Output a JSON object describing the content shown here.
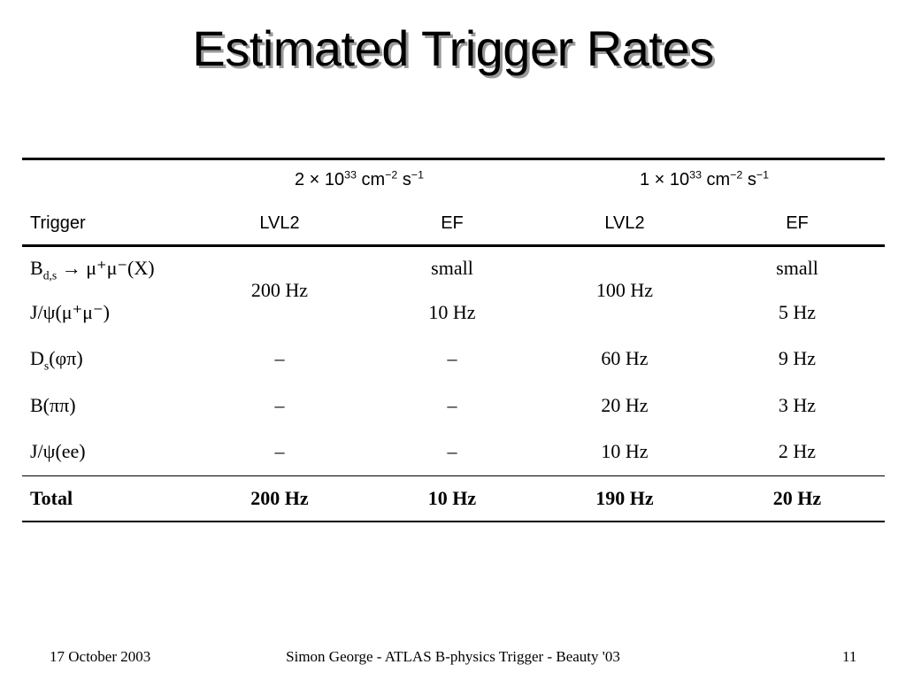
{
  "slide": {
    "title": "Estimated Trigger Rates",
    "footer": {
      "date": "17 October 2003",
      "center": "Simon George - ATLAS B-physics Trigger - Beauty '03",
      "page": "11"
    }
  },
  "table": {
    "luminosity_headers": [
      {
        "prefix": "2 × 10",
        "exp1": "33",
        "mid": " cm",
        "exp2": "−2",
        "mid2": " s",
        "exp3": "−1"
      },
      {
        "prefix": "1 × 10",
        "exp1": "33",
        "mid": " cm",
        "exp2": "−2",
        "mid2": " s",
        "exp3": "−1"
      }
    ],
    "column_headers": [
      "Trigger",
      "LVL2",
      "EF",
      "LVL2",
      "EF"
    ],
    "rows": [
      {
        "trigger": {
          "base": "B",
          "sub": "d,s",
          "rest": " → μ⁺μ⁻(X)"
        },
        "lvl2_a": "",
        "ef_a": "small",
        "lvl2_b": "",
        "ef_b": "small"
      },
      {
        "trigger": {
          "base": "J/ψ(μ⁺μ⁻)",
          "sub": "",
          "rest": ""
        },
        "lvl2_a": "",
        "ef_a": "10 Hz",
        "lvl2_b": "",
        "ef_b": "5 Hz"
      },
      {
        "trigger": {
          "base": "D",
          "sub": "s",
          "rest": "(φπ)"
        },
        "lvl2_a": "–",
        "ef_a": "–",
        "lvl2_b": "60 Hz",
        "ef_b": "9 Hz"
      },
      {
        "trigger": {
          "base": "B(ππ)",
          "sub": "",
          "rest": ""
        },
        "lvl2_a": "–",
        "ef_a": "–",
        "lvl2_b": "20 Hz",
        "ef_b": "3 Hz"
      },
      {
        "trigger": {
          "base": "J/ψ(ee)",
          "sub": "",
          "rest": ""
        },
        "lvl2_a": "–",
        "ef_a": "–",
        "lvl2_b": "10 Hz",
        "ef_b": "2 Hz"
      }
    ],
    "merged": {
      "lvl2_a_rows_1_2": "200 Hz",
      "lvl2_b_rows_1_2": "100 Hz"
    },
    "total": {
      "label": "Total",
      "lvl2_a": "200 Hz",
      "ef_a": "10 Hz",
      "lvl2_b": "190 Hz",
      "ef_b": "20 Hz"
    }
  }
}
